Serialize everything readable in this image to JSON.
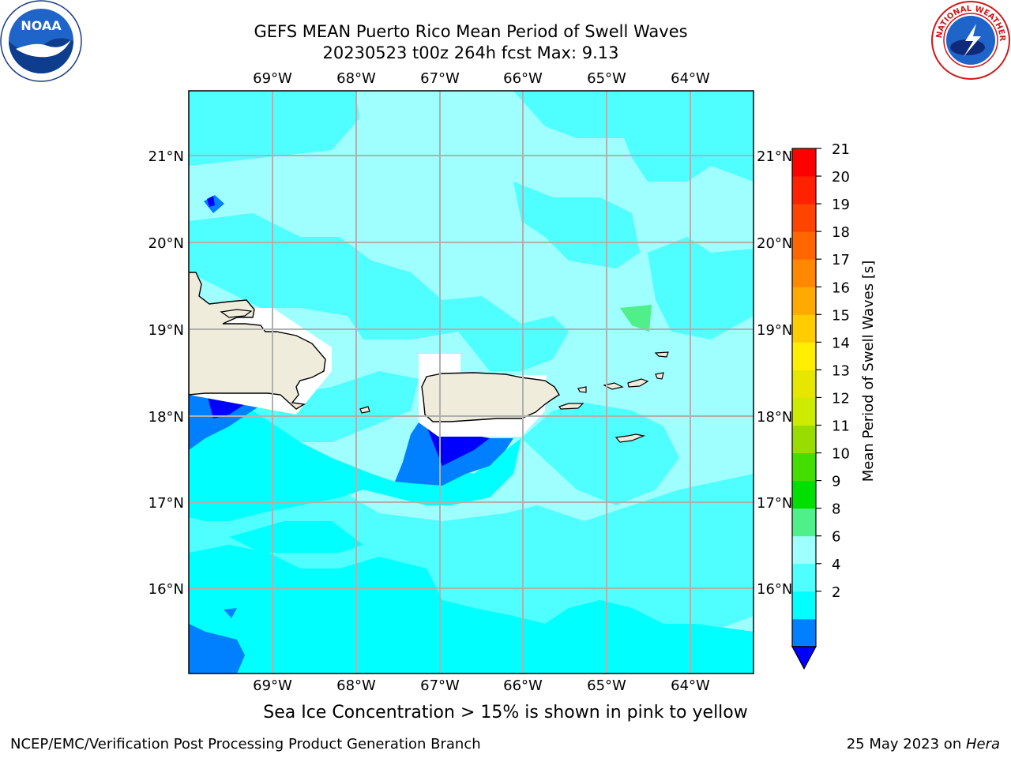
{
  "title": {
    "line1": "GEFS MEAN Puerto Rico Mean Period of Swell Waves",
    "line2": "20230523 t00z 264h fcst   Max: 9.13"
  },
  "logos": {
    "left": {
      "name": "noaa-logo",
      "text": "NOAA"
    },
    "right": {
      "name": "nws-logo",
      "ring_text": "NATIONAL WEATHER SERVICE"
    }
  },
  "map": {
    "lon_labels": [
      "69°W",
      "68°W",
      "67°W",
      "66°W",
      "65°W",
      "64°W"
    ],
    "lat_labels": [
      "21°N",
      "20°N",
      "19°N",
      "18°N",
      "17°N",
      "16°N"
    ],
    "colors": {
      "ocean_base": "#9fffff",
      "land": "#efecdc",
      "no_data": "#ffffff",
      "grid": "#b0b0b0"
    }
  },
  "colorbar": {
    "label": "Mean Period of Swell Waves [s]",
    "ticks": [
      "21",
      "20",
      "19",
      "18",
      "17",
      "16",
      "15",
      "14",
      "13",
      "12",
      "11",
      "10",
      "9",
      "8",
      "6",
      "4",
      "2"
    ],
    "colors": [
      "#0000ff",
      "#0080ff",
      "#00ffff",
      "#4fffff",
      "#9fffff",
      "#4ff08a",
      "#00e000",
      "#44dd00",
      "#99dd00",
      "#cdeb00",
      "#e6e600",
      "#ffee00",
      "#ffcc00",
      "#ffaa00",
      "#ff8800",
      "#ff6600",
      "#ff4400",
      "#ff2200",
      "#ff0000"
    ]
  },
  "footnote": "Sea Ice Concentration > 15% is shown in pink to yellow",
  "footer": {
    "left": "NCEP/EMC/Verification Post Processing Product Generation Branch",
    "right_prefix": "25 May 2023 on ",
    "right_host": "Hera"
  }
}
